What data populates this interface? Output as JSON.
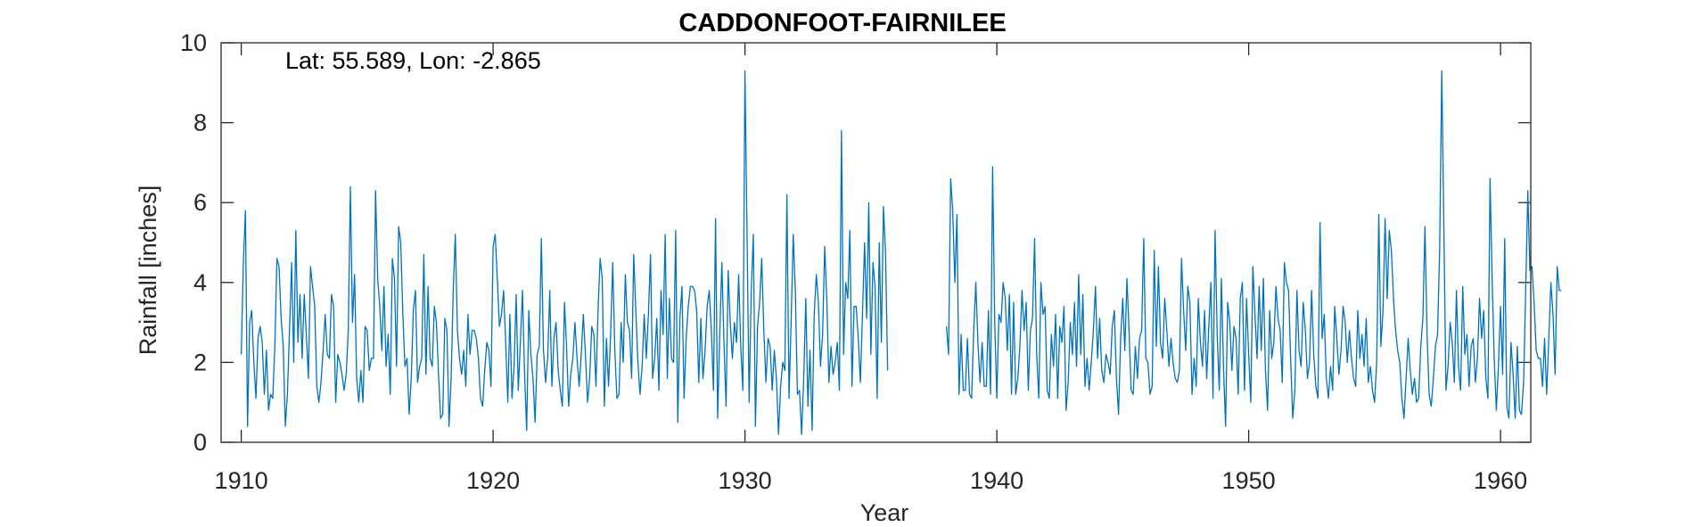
{
  "chart_data": {
    "type": "line",
    "title": "CADDONFOOT-FAIRNILEE",
    "annotation": "Lat: 55.589, Lon: -2.865",
    "xlabel": "Year",
    "ylabel": "Rainfall [inches]",
    "xlim": [
      1909.2,
      1961.2
    ],
    "ylim": [
      0,
      10
    ],
    "xticks": [
      1910,
      1920,
      1930,
      1940,
      1950,
      1960
    ],
    "yticks": [
      0,
      2,
      4,
      6,
      8,
      10
    ],
    "grid": false,
    "box": true,
    "line_color": "#0072BD",
    "series": [
      {
        "x_start": 1910.0,
        "x_step": 0.08333,
        "values": [
          2.2,
          4.5,
          5.8,
          0.4,
          3.0,
          3.3,
          2.0,
          1.1,
          2.6,
          2.9,
          2.5,
          1.2,
          2.3,
          0.8,
          1.2,
          1.1,
          2.4,
          4.6,
          4.4,
          3.1,
          2.4,
          0.4,
          1.2,
          2.8,
          4.5,
          2.0,
          5.3,
          2.5,
          3.7,
          2.1,
          3.7,
          2.7,
          1.6,
          4.4,
          3.9,
          3.4,
          1.4,
          1.0,
          1.5,
          2.3,
          3.2,
          2.2,
          2.1,
          3.7,
          3.4,
          1.0,
          2.2,
          2.0,
          1.7,
          1.3,
          1.7,
          2.8,
          6.4,
          3.0,
          4.2,
          1.6,
          1.0,
          1.8,
          1.0,
          2.9,
          2.8,
          1.8,
          2.1,
          2.1,
          6.3,
          4.1,
          3.4,
          2.3,
          3.9,
          1.9,
          2.7,
          1.2,
          4.6,
          4.1,
          1.9,
          5.4,
          5.0,
          3.2,
          1.9,
          2.1,
          0.7,
          1.6,
          3.3,
          3.8,
          1.5,
          1.9,
          2.1,
          4.7,
          1.7,
          3.9,
          2.1,
          1.9,
          3.4,
          3.0,
          1.7,
          0.6,
          0.7,
          3.1,
          2.8,
          0.4,
          1.6,
          3.8,
          5.2,
          2.8,
          2.1,
          1.7,
          2.3,
          1.4,
          3.2,
          2.2,
          2.8,
          2.8,
          2.6,
          2.1,
          1.1,
          0.9,
          1.8,
          2.5,
          2.3,
          1.4,
          4.9,
          5.2,
          4.1,
          2.9,
          3.2,
          3.8,
          2.5,
          1.0,
          3.2,
          1.1,
          1.9,
          3.7,
          1.3,
          2.5,
          3.8,
          1.7,
          0.3,
          3.3,
          2.2,
          1.6,
          0.5,
          2.2,
          2.4,
          5.1,
          2.3,
          1.5,
          2.1,
          3.8,
          1.4,
          2.6,
          3.0,
          1.8,
          1.3,
          0.9,
          3.5,
          2.4,
          0.9,
          1.7,
          2.1,
          3.0,
          2.1,
          1.4,
          2.2,
          3.2,
          2.2,
          1.0,
          1.6,
          2.9,
          2.7,
          1.4,
          3.3,
          4.6,
          4.1,
          0.9,
          2.6,
          1.4,
          2.7,
          4.5,
          2.3,
          1.1,
          1.2,
          3.0,
          2.0,
          4.2,
          3.0,
          2.8,
          1.6,
          4.7,
          3.3,
          2.0,
          1.2,
          1.9,
          3.2,
          2.1,
          3.2,
          4.7,
          1.6,
          2.1,
          3.1,
          1.3,
          3.8,
          2.7,
          5.2,
          1.6,
          3.6,
          2.1,
          2.0,
          5.3,
          0.5,
          3.1,
          3.9,
          1.1,
          2.6,
          3.4,
          3.9,
          3.9,
          3.8,
          3.3,
          1.5,
          3.1,
          1.6,
          2.3,
          3.4,
          3.8,
          2.8,
          1.3,
          5.6,
          0.6,
          2.7,
          4.5,
          2.5,
          0.9,
          4.3,
          3.0,
          2.1,
          3.0,
          2.5,
          4.2,
          2.4,
          1.3,
          9.3,
          5.2,
          1.0,
          3.8,
          5.2,
          0.4,
          2.9,
          3.5,
          4.6,
          2.8,
          1.5,
          2.6,
          2.4,
          1.3,
          2.3,
          1.6,
          0.2,
          1.4,
          2.0,
          1.8,
          6.2,
          1.1,
          3.0,
          5.2,
          3.8,
          1.2,
          1.3,
          0.2,
          1.6,
          3.6,
          0.9,
          2.3,
          0.3,
          3.2,
          4.2,
          3.5,
          1.9,
          2.7,
          4.9,
          3.6,
          1.5,
          2.4,
          1.7,
          2.0,
          2.5,
          1.3,
          7.8,
          2.2,
          4.0,
          3.6,
          5.3,
          1.4,
          3.4,
          3.4,
          2.6,
          1.5,
          3.2,
          5.0,
          3.1,
          6.0,
          2.2,
          4.5,
          3.9,
          1.1,
          5.0,
          2.5,
          5.9,
          4.7,
          1.8
        ],
        "segment_2": {
          "x_start": 1938.0,
          "x_step": 0.08333,
          "values": [
            2.9,
            2.2,
            6.6,
            5.8,
            4.0,
            5.7,
            1.2,
            2.7,
            1.3,
            1.3,
            2.6,
            1.2,
            1.1,
            2.8,
            4.0,
            2.5,
            1.5,
            2.5,
            1.4,
            1.4,
            3.3,
            1.2,
            6.9,
            3.0,
            1.1,
            3.2,
            3.0,
            4.0,
            3.6,
            2.3,
            3.7,
            1.2,
            3.5,
            1.2,
            1.6,
            2.4,
            3.8,
            2.8,
            3.5,
            1.3,
            2.8,
            3.1,
            5.1,
            2.2,
            1.1,
            4.0,
            3.2,
            3.4,
            1.3,
            1.1,
            2.7,
            1.9,
            3.2,
            1.1,
            2.9,
            2.5,
            3.4,
            0.8,
            1.5,
            3.0,
            2.2,
            3.5,
            1.9,
            4.2,
            2.2,
            3.7,
            1.4,
            2.1,
            1.3,
            2.0,
            2.8,
            3.9,
            2.1,
            3.1,
            1.8,
            1.5,
            2.2,
            2.0,
            1.7,
            2.9,
            3.3,
            1.6,
            0.7,
            2.6,
            3.6,
            2.3,
            4.1,
            2.8,
            1.3,
            1.2,
            2.4,
            1.6,
            2.6,
            2.8,
            5.1,
            2.1,
            2.0,
            1.2,
            1.4,
            4.8,
            2.4,
            4.4,
            2.5,
            2.1,
            3.6,
            2.8,
            1.9,
            2.6,
            2.0,
            1.6,
            1.5,
            1.8,
            4.6,
            3.3,
            2.3,
            3.9,
            3.5,
            1.2,
            2.1,
            1.4,
            3.6,
            2.5,
            1.9,
            3.3,
            1.6,
            2.9,
            4.0,
            1.1,
            5.3,
            2.7,
            1.3,
            4.1,
            1.9,
            0.4,
            3.5,
            3.0,
            1.8,
            2.9,
            2.6,
            1.2,
            3.6,
            4.0,
            1.3,
            3.6,
            2.2,
            1.0,
            4.4,
            3.2,
            2.1,
            3.9,
            2.3,
            4.1,
            1.8,
            0.8,
            3.3,
            2.1,
            2.5,
            3.9,
            3.1,
            2.8,
            1.5,
            4.5,
            4.0,
            3.8,
            2.1,
            0.6,
            1.3,
            3.8,
            2.3,
            1.9,
            3.5,
            2.8,
            1.6,
            2.0,
            3.8,
            2.2,
            1.4,
            1.1,
            5.5,
            2.6,
            3.2,
            1.6,
            1.1,
            1.9,
            1.3,
            3.4,
            2.6,
            1.7,
            2.3,
            3.4,
            3.0,
            2.0,
            2.8,
            2.1,
            1.6,
            1.4,
            3.3,
            2.1,
            2.7,
            1.9,
            3.1,
            1.5,
            1.9,
            1.3,
            1.0,
            2.0,
            5.7,
            2.4,
            3.3,
            5.6,
            3.6,
            5.3,
            4.8,
            3.6,
            2.8,
            2.3,
            2.0,
            1.1,
            0.6,
            1.6,
            2.6,
            1.8,
            1.2,
            1.6,
            1.0,
            1.1,
            2.4,
            3.1,
            5.4,
            2.7,
            1.2,
            0.9,
            1.6,
            2.4,
            2.7,
            4.8,
            9.3,
            5.4,
            1.3,
            1.9,
            3.0,
            2.5,
            1.5,
            3.8,
            1.9,
            1.3,
            3.9,
            2.2,
            2.7,
            1.4,
            2.4,
            2.6,
            1.5,
            2.1,
            3.6,
            2.6,
            3.3,
            1.6,
            1.1,
            6.6,
            4.1,
            2.1,
            0.8,
            1.9,
            3.4,
            1.7,
            5.1,
            0.9,
            0.6,
            2.5,
            1.7,
            0.6,
            2.4,
            0.8,
            0.7,
            1.5,
            3.8,
            6.3,
            4.3,
            4.4,
            3.5,
            2.3,
            2.1,
            2.1,
            1.4,
            2.6,
            1.2,
            2.6,
            4.0,
            3.2,
            1.7,
            4.4,
            3.8,
            3.8
          ]
        }
      }
    ]
  }
}
